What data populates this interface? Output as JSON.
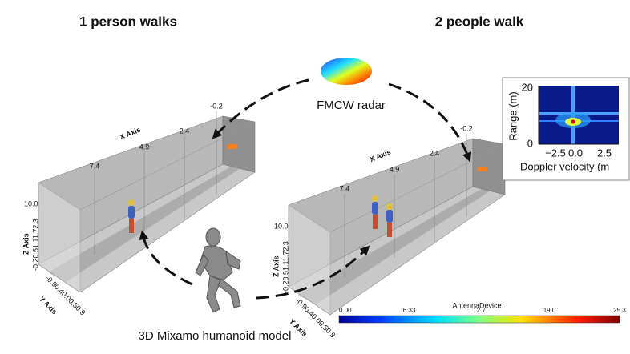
{
  "titles": [
    "1 person walks",
    "2 people walk"
  ],
  "radar_label": "FMCW radar",
  "model_label": "3D Mixamo humanoid model",
  "scenes": [
    {
      "x_axis_title": "X Axis",
      "x_ticks": [
        "7.4",
        "4.9",
        "2.4",
        "-0.2"
      ],
      "z_axis_title": "Z Axis",
      "z_top": "10.0",
      "z_ticks": "-0.20.51.11.72.3",
      "y_axis_title": "Y Axis",
      "y_ticks": "-0.90.40.00.50.9"
    },
    {
      "x_axis_title": "X Axis",
      "x_ticks": [
        "7.4",
        "4.9",
        "2.4",
        "-0.2"
      ],
      "z_axis_title": "Z Axis",
      "z_top": "10.0",
      "z_ticks": "-0.20.51.11.72.3",
      "y_axis_title": "Y Axis",
      "y_ticks": "-0.90.40.00.50.9"
    }
  ],
  "colorbar": {
    "title": "AntennaDevice",
    "ticks": [
      "0.00",
      "6.33",
      "12.7",
      "19.0",
      "25.3"
    ]
  },
  "inset": {
    "ylabel": "Range (m)",
    "xlabel": "Doppler velocity (m",
    "yticks": [
      "20",
      "0"
    ],
    "xticks": [
      "−2.5",
      "0.0",
      "2.5"
    ]
  }
}
